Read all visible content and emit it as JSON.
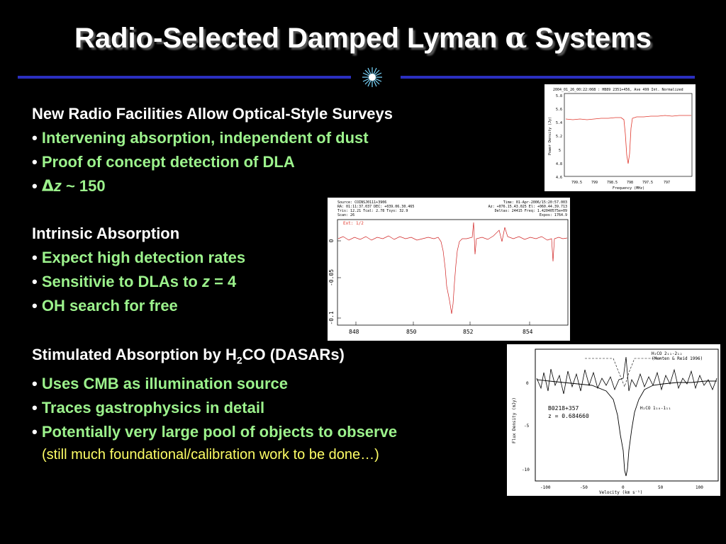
{
  "title": {
    "pre": "Radio-Selected Damped Lyman ",
    "alpha": "α",
    "post": " Systems"
  },
  "section1": {
    "heading": "New Radio Facilities Allow Optical-Style Surveys",
    "items": [
      "Intervening absorption, independent of dust",
      "Proof of concept detection of DLA"
    ],
    "dz": {
      "delta": "Δ",
      "z": "z",
      "approx": " ~ 150"
    }
  },
  "section2": {
    "heading": "Intrinsic Absorption",
    "items": [
      "Expect high detection rates",
      "Sensitivie to DLAs to ",
      "OH search for free"
    ],
    "z_suffix": {
      "z": "z",
      "rest": " = 4"
    }
  },
  "section3": {
    "heading_pre": "Stimulated Absorption by H",
    "heading_sub": "2",
    "heading_post": "CO (DASARs)",
    "items": [
      "Uses CMB as illumination source",
      "Traces gastrophysics in detail",
      "Potentially very large pool of objects to observe"
    ],
    "note": "(still much foundational/calibration work to be done…)"
  },
  "fig1": {
    "header": "2004_01_26_00:22:06B : HB89 2351+456, Ave 499 Int. Normalized",
    "ylabel": "Power Density (Jy)",
    "xlabel": "Frequency (MHz)",
    "yticks": [
      "5.8",
      "5.6",
      "5.4",
      "5.2",
      "5",
      "4.8",
      "4.6"
    ],
    "xticks": [
      "799.5",
      "799",
      "798.5",
      "798",
      "797.5",
      "797"
    ]
  },
  "fig2": {
    "info_left": [
      "Source: COINSJ0111+3906",
      "RA: 01:11:37.037 DEC: +039.06.30.465",
      "Tris: 12.21 Tcal: 2.78 Tsys: 32.9",
      "Scan: 26"
    ],
    "info_right": [
      "Time: 01-Apr-2006/15:20:57.003",
      "Az: +076.15.43.025 El: +060.44.39.713",
      "Deltas: 24415 Freq: 1.42040575e+09",
      "Expos: 1764.9"
    ],
    "label": "Ext: 1/2",
    "yticks": [
      "0",
      "-0.05",
      "-0.1"
    ],
    "xticks": [
      "848",
      "850",
      "852",
      "854"
    ]
  },
  "fig3": {
    "legend1": "H₂CO 2₁₁-2₁₂",
    "legend1_ref": "(Menten & Reid 1996)",
    "source": "B0218+357",
    "redshift": "z = 0.684660",
    "legend2": "H₂CO 1₁₀-1₁₁",
    "ylabel": "Flux Density (mJy)",
    "xlabel": "Velocity (km s⁻¹)",
    "yticks": [
      "0",
      "-5",
      "-10"
    ],
    "xticks": [
      "-100",
      "-50",
      "0",
      "50",
      "100"
    ]
  }
}
